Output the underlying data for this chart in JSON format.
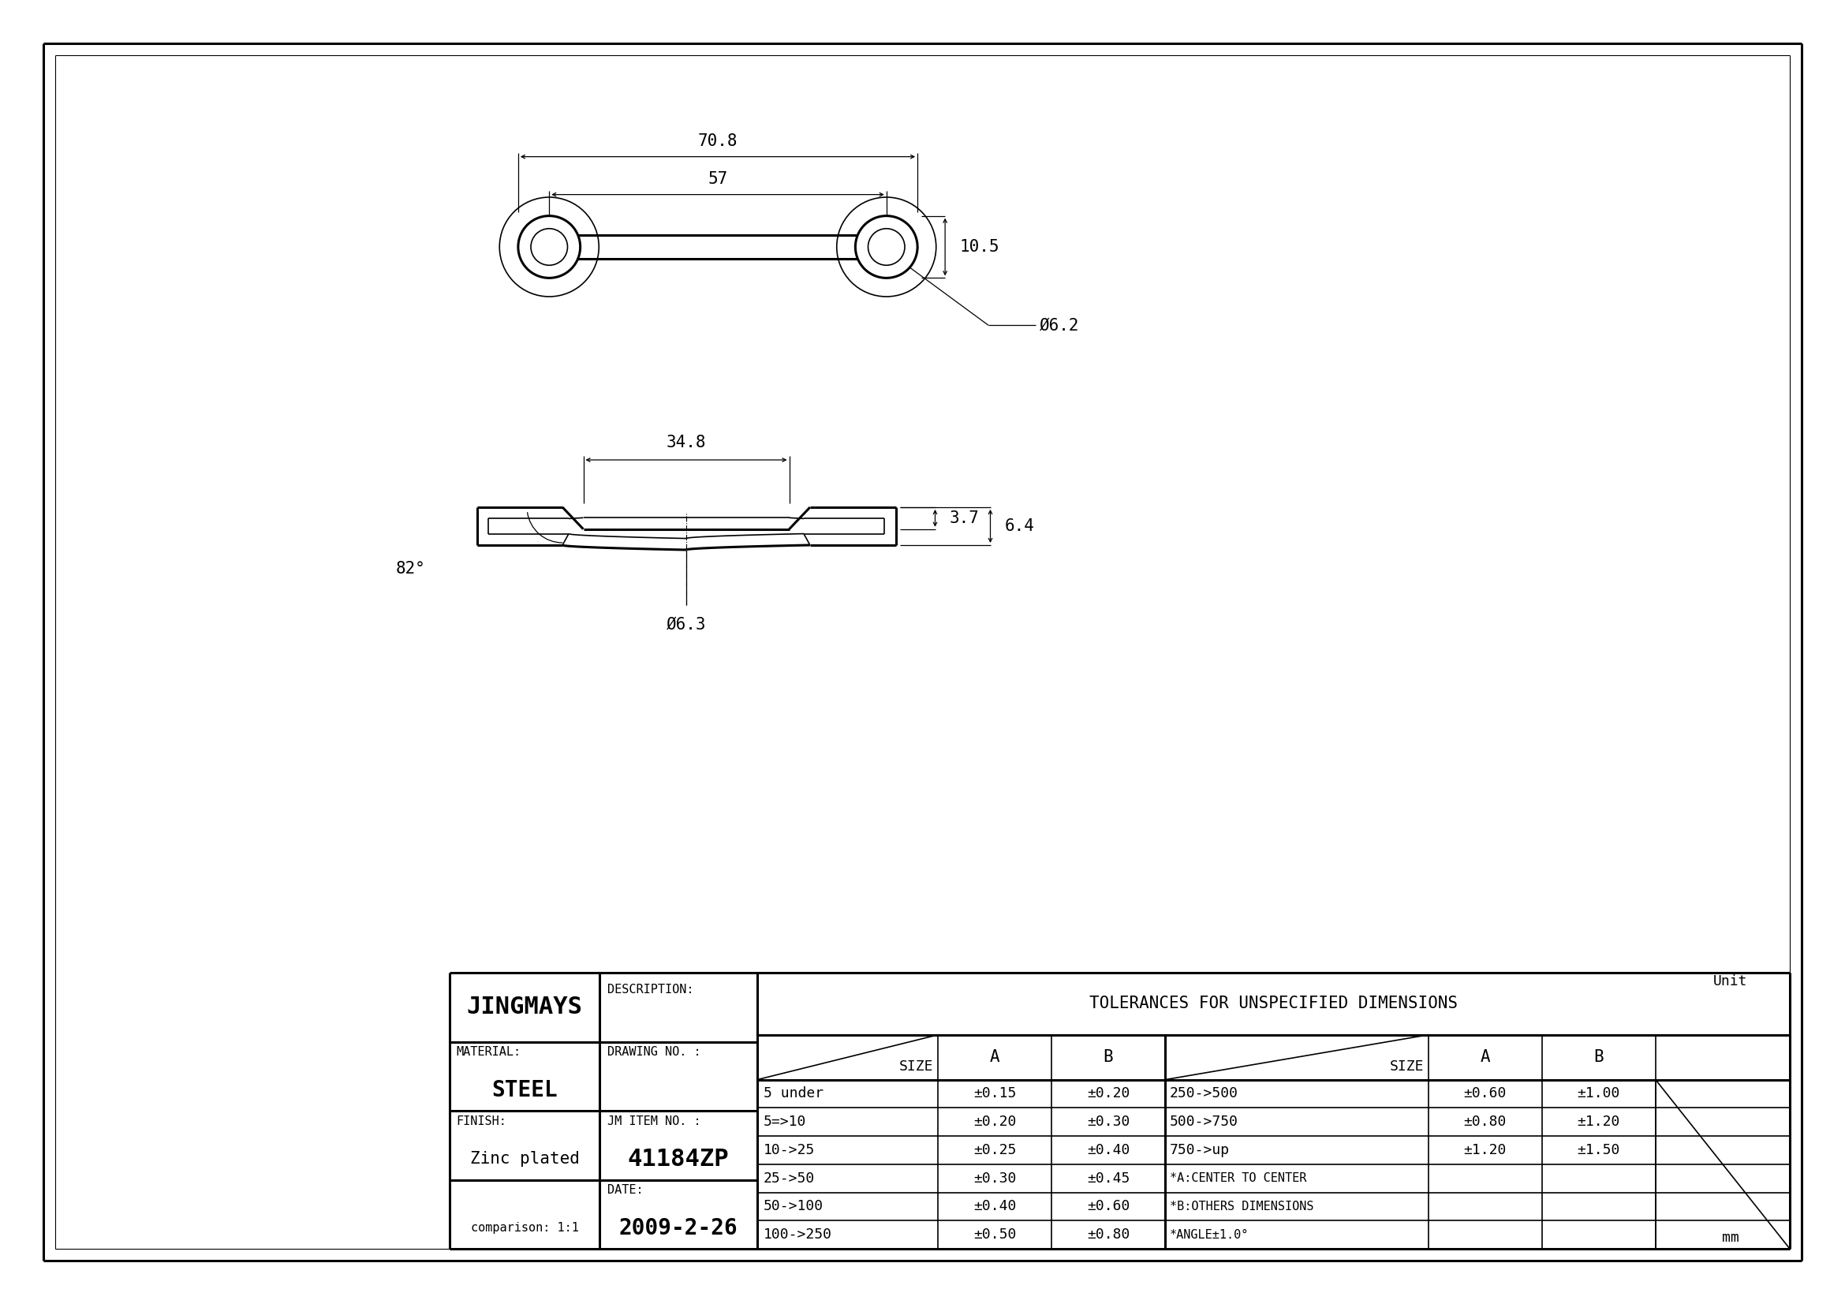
{
  "bg_color": "#ffffff",
  "line_color": "#000000",
  "title_text": "JINGMAYS",
  "description_label": "DESCRIPTION:",
  "material_label": "MATERIAL:",
  "material_value": "STEEL",
  "finish_label": "FINISH:",
  "finish_value": "Zinc plated",
  "drawing_no_label": "DRAWING NO. :",
  "jm_item_label": "JM ITEM NO. :",
  "jm_item_value": "41184ZP",
  "date_label": "DATE:",
  "date_value": "2009-2-26",
  "comparison": "comparison: 1:1",
  "tolerances_title": "TOLERANCES FOR UNSPECIFIED DIMENSIONS",
  "tol_rows": [
    [
      "5 under",
      "±0.15",
      "±0.20",
      "250->500",
      "±0.60",
      "±1.00"
    ],
    [
      "5=>10",
      "±0.20",
      "±0.30",
      "500->750",
      "±0.80",
      "±1.20"
    ],
    [
      "10->25",
      "±0.25",
      "±0.40",
      "750->up",
      "±1.20",
      "±1.50"
    ],
    [
      "25->50",
      "±0.30",
      "±0.45",
      "*A:CENTER TO CENTER",
      "",
      ""
    ],
    [
      "50->100",
      "±0.40",
      "±0.60",
      "*B:OTHERS DIMENSIONS",
      "",
      ""
    ],
    [
      "100->250",
      "±0.50",
      "±0.80",
      "*ANGLE±1.0°",
      "",
      ""
    ]
  ],
  "unit_label": "Unit",
  "unit_value": "mm",
  "dim_708": "70.8",
  "dim_57": "57",
  "dim_105": "10.5",
  "dim_62": "Ø6.2",
  "dim_348": "34.8",
  "dim_37": "3.7",
  "dim_64": "6.4",
  "dim_82": "82°",
  "dim_63": "Ø6.3"
}
